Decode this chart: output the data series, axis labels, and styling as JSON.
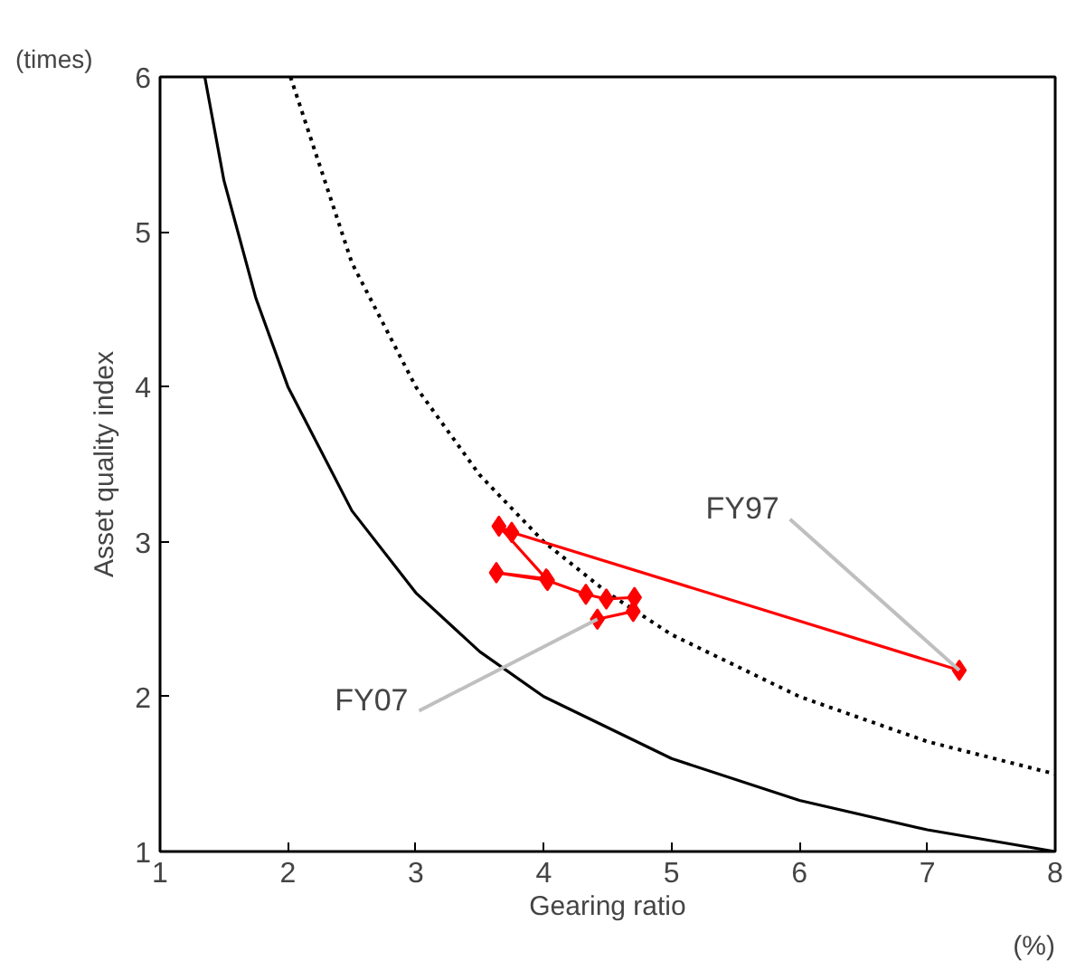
{
  "chart_data": {
    "type": "line",
    "xlabel": "Gearing ratio",
    "ylabel": "Asset quality index",
    "series": [
      {
        "color": "#000000",
        "marker": "none",
        "line_style": "solid",
        "x": [
          1.35,
          1.5,
          1.75,
          2,
          2.5,
          3,
          3.5,
          4,
          5,
          6,
          7,
          8
        ],
        "values": [
          6,
          5.33,
          4.57,
          4,
          3.2,
          2.67,
          2.29,
          2,
          1.6,
          1.33,
          1.14,
          1
        ]
      },
      {
        "color": "#000000",
        "marker": "none",
        "line_style": "dotted",
        "x": [
          2.02,
          2.5,
          3,
          3.5,
          4,
          4.5,
          5,
          6,
          7,
          8
        ],
        "values": [
          6,
          4.8,
          4,
          3.43,
          3,
          2.67,
          2.4,
          2,
          1.71,
          1.5
        ]
      },
      {
        "color": "#ff0000",
        "marker": "diamond",
        "line_style": "solid",
        "x": [
          7.25,
          3.75,
          3.65,
          4.02,
          3.63,
          4.03,
          4.33,
          4.49,
          4.71,
          4.7,
          4.42
        ],
        "values": [
          2.17,
          3.06,
          3.1,
          2.76,
          2.8,
          2.75,
          2.66,
          2.63,
          2.64,
          2.55,
          2.5
        ]
      }
    ],
    "annotations": [
      {
        "text": "FY97",
        "x": 7.25,
        "y": 2.17
      },
      {
        "text": "FY07",
        "x": 4.42,
        "y": 2.5
      },
      "(times)",
      "(%)"
    ],
    "xlim": [
      1,
      8
    ],
    "ylim": [
      1,
      6
    ],
    "xticks": [
      1,
      2,
      3,
      4,
      5,
      6,
      7,
      8
    ],
    "yticks": [
      1,
      2,
      3,
      4,
      5,
      6
    ],
    "grid": false
  }
}
